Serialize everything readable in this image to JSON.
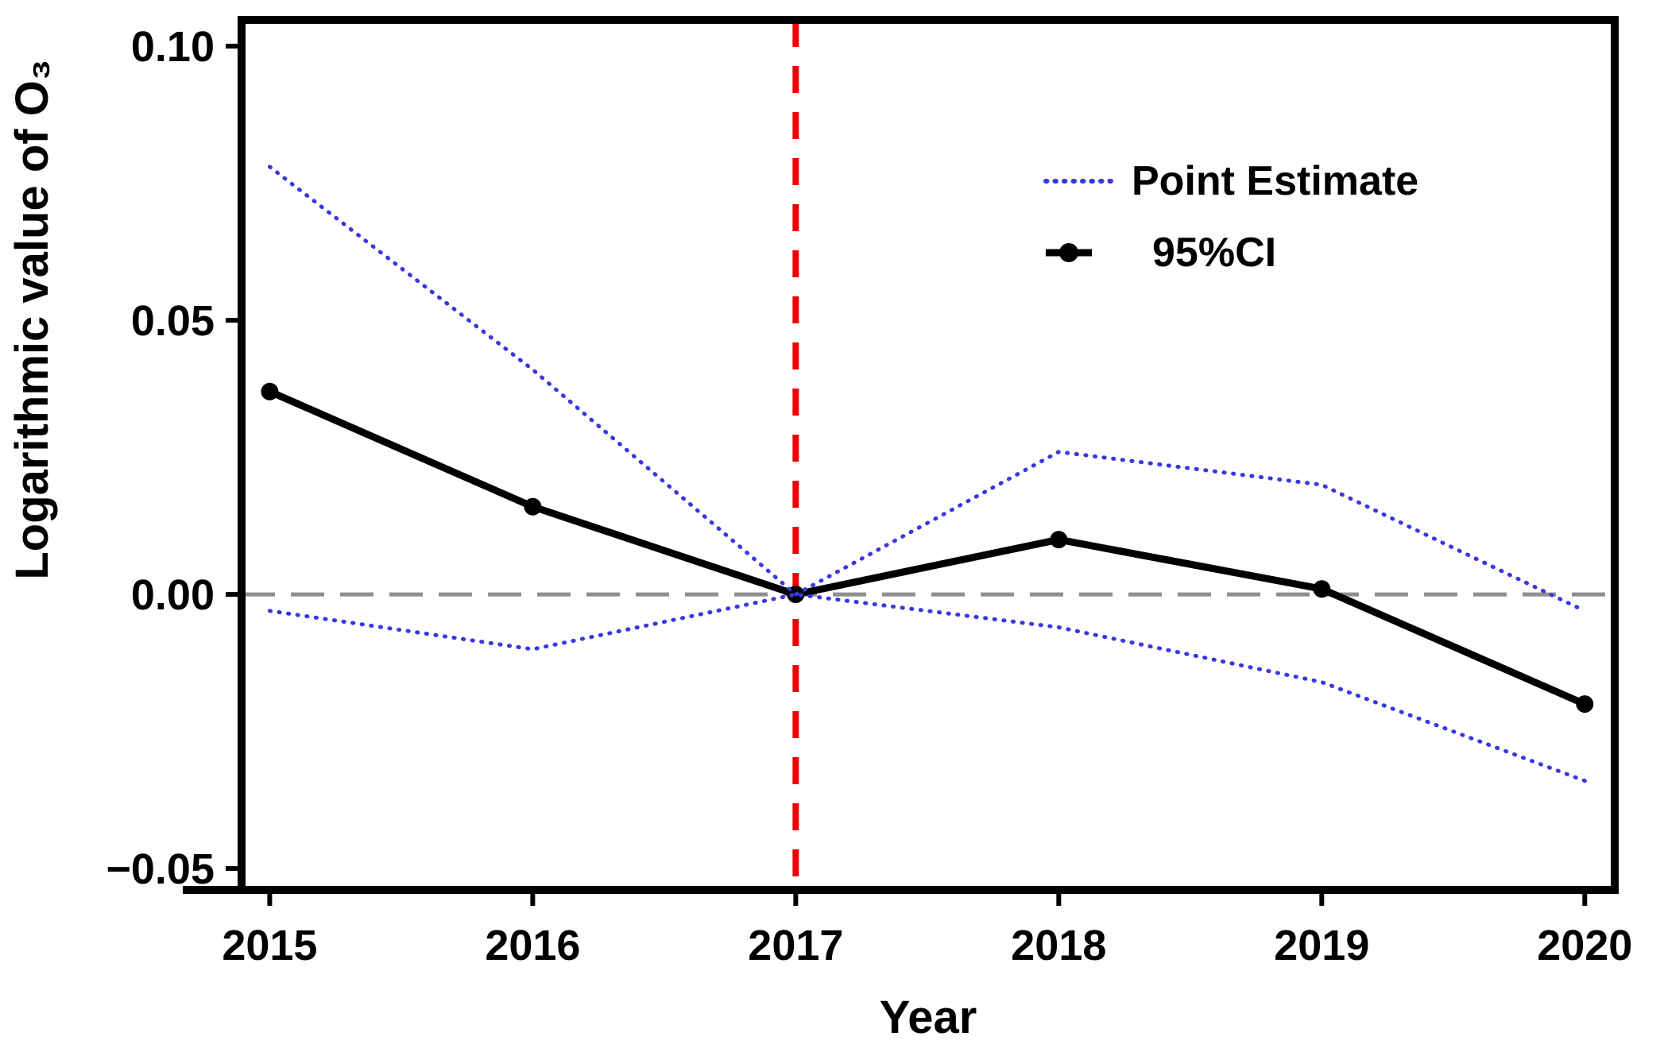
{
  "axes": {
    "x_label": "Year",
    "y_label": "Logarithmic value of O₃"
  },
  "legend": {
    "items": [
      {
        "label": "Point Estimate",
        "marker": "blue-dotted-line"
      },
      {
        "label": "95%CI",
        "marker": "black-line-with-dot"
      }
    ]
  },
  "colors": {
    "ci_band_blue": "#3838e0",
    "point_line_black": "#000000",
    "reference_red": "#ee0000",
    "reference_gray": "#8f8f8f",
    "frame": "#000000"
  },
  "chart_data": {
    "type": "line",
    "title": "",
    "xlabel": "Year",
    "ylabel": "Logarithmic value of O₃",
    "x": [
      2015,
      2016,
      2017,
      2018,
      2019,
      2020
    ],
    "x_tick_labels": [
      "2015",
      "2016",
      "2017",
      "2018",
      "2019",
      "2020"
    ],
    "y_ticks": [
      0.1,
      0.05,
      0.0,
      -0.05
    ],
    "y_tick_labels": [
      "0.10",
      "0.05",
      "0.00",
      "−0.05"
    ],
    "xlim": [
      2014.893,
      2020.114
    ],
    "ylim": [
      -0.0539,
      0.1048
    ],
    "grid": false,
    "legend_position": "upper-right",
    "series": [
      {
        "name": "95%CI",
        "style": "solid-with-markers",
        "color": "#000000",
        "values": [
          0.037,
          0.016,
          0.0,
          0.01,
          0.001,
          -0.02
        ]
      },
      {
        "name": "Point Estimate (upper band)",
        "style": "dotted",
        "color": "#3838e0",
        "values": [
          0.078,
          0.041,
          0.0,
          0.026,
          0.02,
          -0.003
        ]
      },
      {
        "name": "Point Estimate (lower band)",
        "style": "dotted",
        "color": "#3838e0",
        "values": [
          -0.003,
          -0.01,
          0.0,
          -0.006,
          -0.016,
          -0.034
        ]
      }
    ],
    "reference_lines": [
      {
        "orientation": "vertical",
        "x": 2017,
        "style": "dashed",
        "color": "#ee0000"
      },
      {
        "orientation": "horizontal",
        "y": 0.0,
        "style": "dashed",
        "color": "#8f8f8f"
      }
    ]
  }
}
